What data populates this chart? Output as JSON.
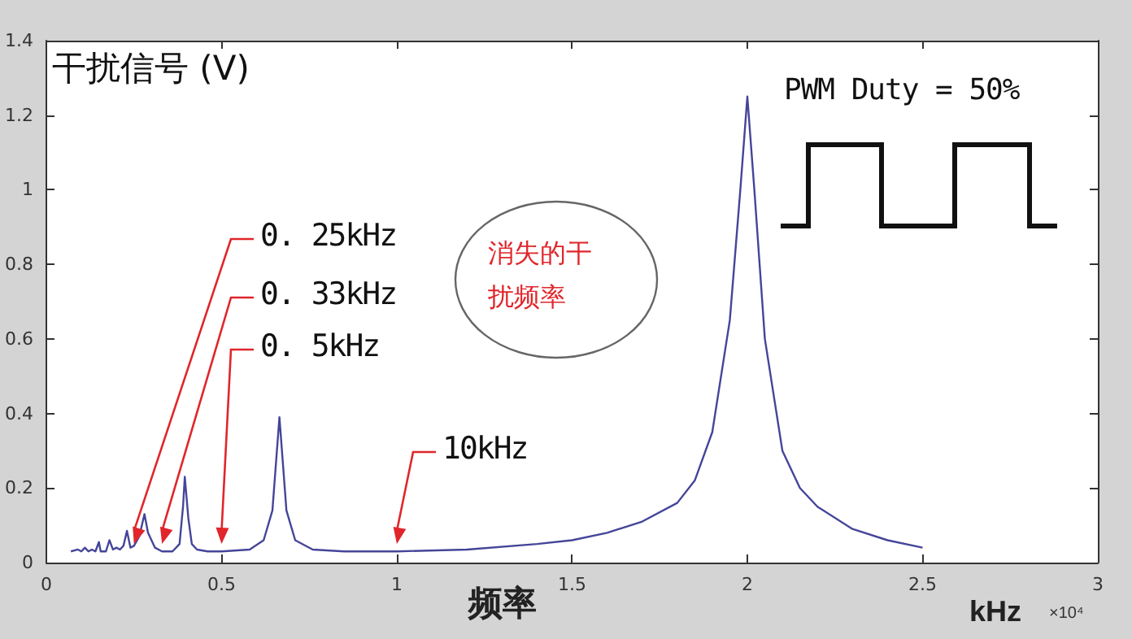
{
  "chart_data": {
    "type": "line",
    "ylabel": "干扰信号 (V)",
    "xlabel": "频率",
    "x": [
      0.07,
      0.09,
      0.1,
      0.11,
      0.12,
      0.13,
      0.14,
      0.15,
      0.155,
      0.17,
      0.18,
      0.19,
      0.2,
      0.21,
      0.22,
      0.23,
      0.24,
      0.25,
      0.265,
      0.28,
      0.29,
      0.31,
      0.33,
      0.36,
      0.38,
      0.39,
      0.395,
      0.405,
      0.415,
      0.43,
      0.46,
      0.5,
      0.58,
      0.62,
      0.645,
      0.665,
      0.685,
      0.71,
      0.76,
      0.85,
      1.0,
      1.2,
      1.4,
      1.5,
      1.6,
      1.7,
      1.8,
      1.85,
      1.9,
      1.95,
      1.98,
      2.0,
      2.02,
      2.05,
      2.1,
      2.15,
      2.2,
      2.3,
      2.4,
      2.5
    ],
    "series": [
      {
        "color": "#45459a",
        "values": [
          0.03,
          0.035,
          0.03,
          0.04,
          0.03,
          0.035,
          0.03,
          0.055,
          0.03,
          0.03,
          0.06,
          0.035,
          0.04,
          0.035,
          0.045,
          0.085,
          0.04,
          0.045,
          0.07,
          0.13,
          0.08,
          0.04,
          0.03,
          0.03,
          0.05,
          0.15,
          0.23,
          0.12,
          0.05,
          0.035,
          0.03,
          0.03,
          0.035,
          0.06,
          0.14,
          0.39,
          0.14,
          0.06,
          0.035,
          0.03,
          0.03,
          0.035,
          0.05,
          0.06,
          0.08,
          0.11,
          0.16,
          0.22,
          0.35,
          0.65,
          1.0,
          1.25,
          1.0,
          0.6,
          0.3,
          0.2,
          0.15,
          0.09,
          0.06,
          0.04
        ]
      }
    ],
    "xlim": [
      0,
      3
    ],
    "xticks": [
      0,
      0.5,
      1,
      1.5,
      2,
      2.5,
      3
    ],
    "ylim": [
      0,
      1.4
    ],
    "yticks": [
      0,
      0.2,
      0.4,
      0.6,
      0.8,
      1,
      1.2,
      1.4
    ],
    "grid": false,
    "marker": "none",
    "line_style": "solid",
    "annotations": [
      {
        "text": "0. 25kHz",
        "x": 0.25,
        "y": 0.05
      },
      {
        "text": "0. 33kHz",
        "x": 0.33,
        "y": 0.05
      },
      {
        "text": "0. 5kHz",
        "x": 0.5,
        "y": 0.05
      },
      {
        "text": "10kHz",
        "x": 1,
        "y": 0.05
      },
      "消失的干扰频率",
      "PWM Duty = 50%",
      "kHz",
      "×10⁴"
    ]
  }
}
